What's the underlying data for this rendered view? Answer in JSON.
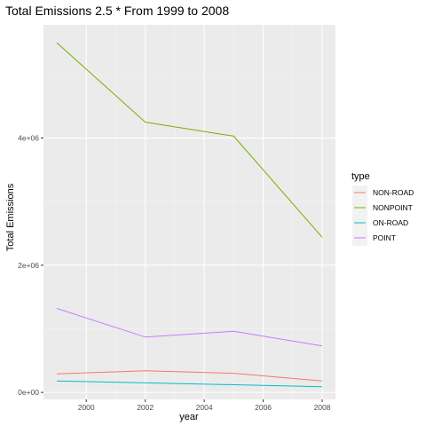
{
  "chart_data": {
    "type": "line",
    "title": "Total Emissions 2.5 * From 1999 to 2008",
    "xlabel": "year",
    "ylabel": "Total Emissions",
    "x": [
      1999,
      2002,
      2005,
      2008
    ],
    "xlim": [
      1998.55,
      2008.45
    ],
    "ylim": [
      -110000,
      5780000
    ],
    "x_ticks": [
      {
        "value": 2000,
        "label": "2000"
      },
      {
        "value": 2002,
        "label": "2002"
      },
      {
        "value": 2004,
        "label": "2004"
      },
      {
        "value": 2006,
        "label": "2006"
      },
      {
        "value": 2008,
        "label": "2008"
      }
    ],
    "y_ticks": [
      {
        "value": 0,
        "label": "0e+00"
      },
      {
        "value": 2000000,
        "label": "2e+06"
      },
      {
        "value": 4000000,
        "label": "4e+06"
      }
    ],
    "grid": true,
    "legend": {
      "title": "type",
      "placement": "right"
    },
    "series": [
      {
        "name": "NON-ROAD",
        "color": "#F8766D",
        "values": [
          290000,
          340000,
          300000,
          180000
        ]
      },
      {
        "name": "NONPOINT",
        "color": "#7CAE00",
        "values": [
          5500000,
          4250000,
          4030000,
          2440000
        ]
      },
      {
        "name": "ON-ROAD",
        "color": "#00BFC4",
        "values": [
          180000,
          150000,
          120000,
          90000
        ]
      },
      {
        "name": "POINT",
        "color": "#C77CFF",
        "values": [
          1320000,
          870000,
          960000,
          730000
        ]
      }
    ],
    "colors": {
      "panel": "#EBEBEB",
      "grid_major": "#FFFFFF",
      "grid_minor": "#F5F5F5",
      "tick": "#333333"
    }
  }
}
